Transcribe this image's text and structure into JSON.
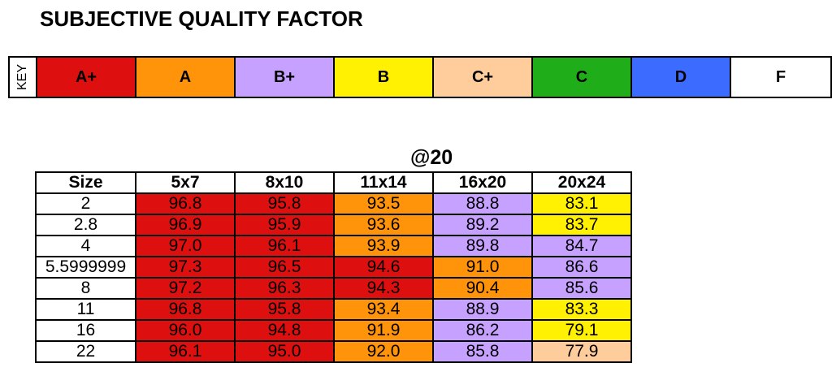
{
  "title": "SUBJECTIVE QUALITY FACTOR",
  "key": {
    "label": "KEY",
    "grades": [
      {
        "label": "A+",
        "color": "#dd0f0f"
      },
      {
        "label": "A",
        "color": "#ff9309"
      },
      {
        "label": "B+",
        "color": "#c7a1ff"
      },
      {
        "label": "B",
        "color": "#fff101"
      },
      {
        "label": "C+",
        "color": "#ffcc9c"
      },
      {
        "label": "C",
        "color": "#1fae1a"
      },
      {
        "label": "D",
        "color": "#3b6cff"
      },
      {
        "label": "F",
        "color": "#ffffff"
      }
    ]
  },
  "table": {
    "caption": "@20",
    "headers": [
      "Size",
      "5x7",
      "8x10",
      "11x14",
      "16x20",
      "20x24"
    ],
    "rows": [
      {
        "size": "2",
        "values": [
          "96.8",
          "95.8",
          "93.5",
          "88.8",
          "83.1"
        ],
        "grades": [
          "A+",
          "A+",
          "A",
          "B+",
          "B"
        ]
      },
      {
        "size": "2.8",
        "values": [
          "96.9",
          "95.9",
          "93.6",
          "89.2",
          "83.7"
        ],
        "grades": [
          "A+",
          "A+",
          "A",
          "B+",
          "B"
        ]
      },
      {
        "size": "4",
        "values": [
          "97.0",
          "96.1",
          "93.9",
          "89.8",
          "84.7"
        ],
        "grades": [
          "A+",
          "A+",
          "A",
          "B+",
          "B+"
        ]
      },
      {
        "size": "5.5999999",
        "values": [
          "97.3",
          "96.5",
          "94.6",
          "91.0",
          "86.6"
        ],
        "grades": [
          "A+",
          "A+",
          "A+",
          "A",
          "B+"
        ]
      },
      {
        "size": "8",
        "values": [
          "97.2",
          "96.3",
          "94.3",
          "90.4",
          "85.6"
        ],
        "grades": [
          "A+",
          "A+",
          "A+",
          "A",
          "B+"
        ]
      },
      {
        "size": "11",
        "values": [
          "96.8",
          "95.8",
          "93.4",
          "88.9",
          "83.3"
        ],
        "grades": [
          "A+",
          "A+",
          "A",
          "B+",
          "B"
        ]
      },
      {
        "size": "16",
        "values": [
          "96.0",
          "94.8",
          "91.9",
          "86.2",
          "79.1"
        ],
        "grades": [
          "A+",
          "A+",
          "A",
          "B+",
          "B"
        ]
      },
      {
        "size": "22",
        "values": [
          "96.1",
          "95.0",
          "92.0",
          "85.8",
          "77.9"
        ],
        "grades": [
          "A+",
          "A+",
          "A",
          "B+",
          "C+"
        ]
      }
    ]
  }
}
